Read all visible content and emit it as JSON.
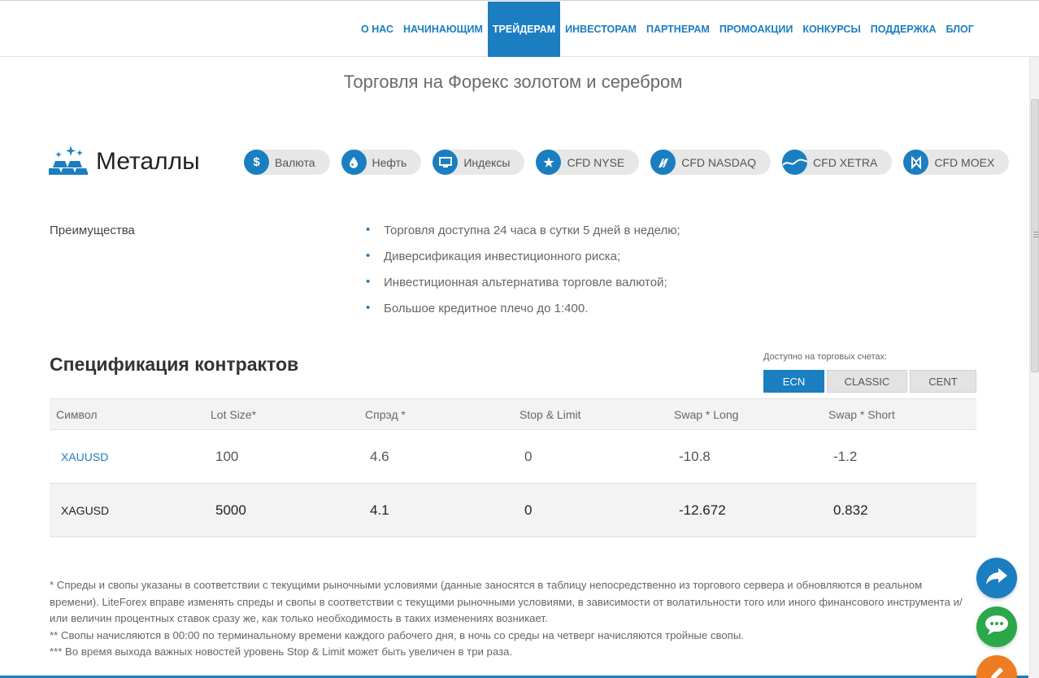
{
  "nav": {
    "items": [
      {
        "label": "О НАС"
      },
      {
        "label": "НАЧИНАЮЩИМ"
      },
      {
        "label": "ТРЕЙДЕРАМ",
        "active": true
      },
      {
        "label": "ИНВЕСТОРАМ"
      },
      {
        "label": "ПАРТНЕРАМ"
      },
      {
        "label": "ПРОМОАКЦИИ"
      },
      {
        "label": "КОНКУРСЫ"
      },
      {
        "label": "ПОДДЕРЖКА"
      },
      {
        "label": "БЛОГ"
      }
    ]
  },
  "page": {
    "title": "Торговля на Форекс золотом и серебром"
  },
  "section": {
    "title": "Металлы",
    "icon": "gold-bars-icon",
    "categories": [
      {
        "label": "Валюта",
        "icon": "dollar-icon"
      },
      {
        "label": "Нефть",
        "icon": "oil-drop-icon"
      },
      {
        "label": "Индексы",
        "icon": "monitor-icon"
      },
      {
        "label": "CFD NYSE",
        "icon": "star-icon"
      },
      {
        "label": "CFD NASDAQ",
        "icon": "nasdaq-icon"
      },
      {
        "label": "CFD XETRA",
        "icon": "wave-icon"
      },
      {
        "label": "CFD MOEX",
        "icon": "moex-icon"
      }
    ]
  },
  "advantages": {
    "label": "Преимущества",
    "items": [
      "Торговля доступна 24 часа в сутки 5 дней в неделю;",
      "Диверсификация инвестиционного риска;",
      "Инвестиционная альтернатива торговле валютой;",
      "Большое кредитное плечо до 1:400."
    ]
  },
  "spec": {
    "title": "Спецификация контрактов",
    "available_label": "Доступно на торговых счетах:",
    "accounts": [
      {
        "label": "ECN",
        "active": true
      },
      {
        "label": "CLASSIC"
      },
      {
        "label": "CENT"
      }
    ],
    "columns": [
      "Символ",
      "Lot Size*",
      "Спрэд *",
      "Stop & Limit",
      "Swap * Long",
      "Swap * Short"
    ],
    "rows": [
      {
        "symbol": "XAUUSD",
        "lot": "100",
        "spread": "4.6",
        "stop_limit": "0",
        "swap_long": "-10.8",
        "swap_short": "-1.2"
      },
      {
        "symbol": "XAGUSD",
        "lot": "5000",
        "spread": "4.1",
        "stop_limit": "0",
        "swap_long": "-12.672",
        "swap_short": "0.832"
      }
    ]
  },
  "notes": {
    "line1": "* Спреды и свопы указаны в соответствии с текущими рыночными условиями (данные заносятся в таблицу непосредственно из торгового сервера и обновляются в реальном времени). LiteForex вправе изменять спреды и свопы в соответствии с текущими рыночными условиями, в зависимости от волатильности того или иного финансового инструмента и/или величин процентных ставок сразу же, как только необходимость в таких изменениях возникает.",
    "line2": "** Свопы начисляются в 00:00 по терминальному времени каждого рабочего дня, в ночь со среды на четверг начисляются тройные свопы.",
    "line3": "*** Во время выхода важных новостей уровень Stop & Limit может быть увеличен в три раза."
  },
  "colors": {
    "accent": "#1b7ec1",
    "chat": "#2aa84a",
    "edit": "#ee7c22"
  },
  "floating": {
    "share_icon": "share-arrow-icon",
    "chat_icon": "chat-bubble-icon",
    "edit_icon": "pencil-icon"
  }
}
